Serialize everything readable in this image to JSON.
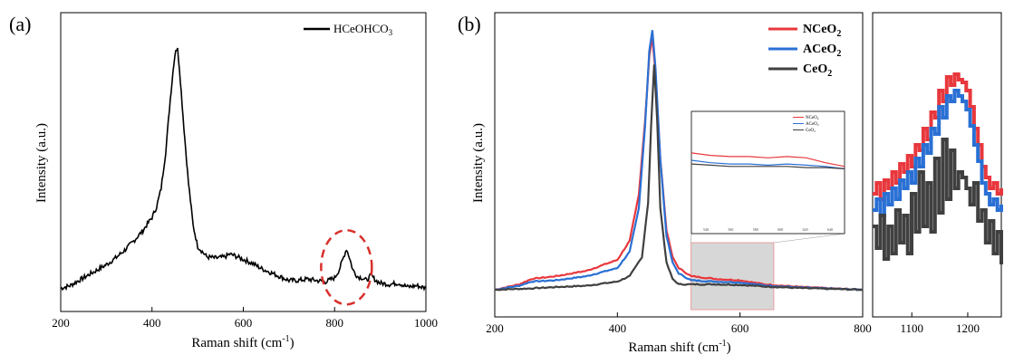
{
  "panel_labels": {
    "a": "(a)",
    "b": "(b)"
  },
  "colors": {
    "ncEO2": "#e8383d",
    "aceo2": "#2a70d4",
    "ceo2": "#404040",
    "hce": "#000000",
    "circle": "#d9302c",
    "shade": "#d7d7d7"
  },
  "chart_data": [
    {
      "id": "a",
      "type": "line",
      "xlabel": "Raman shift (cm",
      "xlabel_sup": "-1",
      "xlabel_end": ")",
      "ylabel": "Intensity (a.u.)",
      "xlim": [
        200,
        1000
      ],
      "ylim": [
        0,
        1
      ],
      "xticks": [
        "200",
        "400",
        "600",
        "800",
        "1000"
      ],
      "legend": {
        "placement": "top-right",
        "label": "HCeOHCO",
        "sub": "3"
      },
      "series": [
        {
          "name": "HCeOHCO3",
          "color_key": "hce",
          "points": [
            [
              200,
              0.04
            ],
            [
              220,
              0.05
            ],
            [
              240,
              0.07
            ],
            [
              260,
              0.09
            ],
            [
              280,
              0.11
            ],
            [
              300,
              0.13
            ],
            [
              320,
              0.155
            ],
            [
              340,
              0.185
            ],
            [
              360,
              0.22
            ],
            [
              380,
              0.26
            ],
            [
              400,
              0.31
            ],
            [
              410,
              0.35
            ],
            [
              420,
              0.42
            ],
            [
              430,
              0.56
            ],
            [
              440,
              0.76
            ],
            [
              448,
              0.9
            ],
            [
              452,
              0.95
            ],
            [
              456,
              0.95
            ],
            [
              460,
              0.88
            ],
            [
              470,
              0.65
            ],
            [
              480,
              0.44
            ],
            [
              490,
              0.28
            ],
            [
              500,
              0.2
            ],
            [
              520,
              0.16
            ],
            [
              540,
              0.155
            ],
            [
              560,
              0.16
            ],
            [
              570,
              0.17
            ],
            [
              580,
              0.165
            ],
            [
              600,
              0.15
            ],
            [
              620,
              0.135
            ],
            [
              640,
              0.115
            ],
            [
              660,
              0.1
            ],
            [
              680,
              0.085
            ],
            [
              700,
              0.07
            ],
            [
              720,
              0.07
            ],
            [
              740,
              0.075
            ],
            [
              760,
              0.07
            ],
            [
              780,
              0.065
            ],
            [
              800,
              0.08
            ],
            [
              810,
              0.11
            ],
            [
              820,
              0.16
            ],
            [
              826,
              0.19
            ],
            [
              832,
              0.16
            ],
            [
              840,
              0.11
            ],
            [
              850,
              0.085
            ],
            [
              860,
              0.08
            ],
            [
              870,
              0.07
            ],
            [
              880,
              0.09
            ],
            [
              890,
              0.07
            ],
            [
              900,
              0.06
            ],
            [
              920,
              0.055
            ],
            [
              940,
              0.06
            ],
            [
              960,
              0.045
            ],
            [
              980,
              0.05
            ],
            [
              1000,
              0.04
            ]
          ]
        }
      ],
      "annotation": {
        "type": "dashed-ellipse",
        "x": 826,
        "y": 0.12
      }
    },
    {
      "id": "b",
      "type": "line",
      "xlabel": "Raman shift (cm",
      "xlabel_sup": "-1",
      "xlabel_end": ")",
      "ylabel": "Intensity (a.u.)",
      "xlim": [
        200,
        800
      ],
      "ylim": [
        0,
        1
      ],
      "xticks": [
        "200",
        "400",
        "600",
        "800"
      ],
      "legend": {
        "placement": "top-right",
        "entries": [
          {
            "label": "NCeO",
            "sub": "2",
            "color_key": "ncEO2"
          },
          {
            "label": "ACeO",
            "sub": "2",
            "color_key": "aceo2"
          },
          {
            "label": "CeO",
            "sub": "2",
            "color_key": "ceo2"
          }
        ]
      },
      "highlight_region": [
        520,
        655
      ],
      "series": [
        {
          "name": "NCeO2",
          "color_key": "ncEO2",
          "points": [
            [
              200,
              0.0
            ],
            [
              240,
              0.02
            ],
            [
              260,
              0.04
            ],
            [
              300,
              0.05
            ],
            [
              350,
              0.07
            ],
            [
              400,
              0.11
            ],
            [
              420,
              0.18
            ],
            [
              435,
              0.35
            ],
            [
              445,
              0.62
            ],
            [
              452,
              0.86
            ],
            [
              457,
              0.93
            ],
            [
              462,
              0.8
            ],
            [
              470,
              0.48
            ],
            [
              480,
              0.22
            ],
            [
              490,
              0.12
            ],
            [
              500,
              0.08
            ],
            [
              520,
              0.05
            ],
            [
              560,
              0.04
            ],
            [
              600,
              0.035
            ],
            [
              640,
              0.02
            ],
            [
              700,
              0.01
            ],
            [
              800,
              0.0
            ]
          ]
        },
        {
          "name": "ACeO2",
          "color_key": "aceo2",
          "points": [
            [
              200,
              0.0
            ],
            [
              240,
              0.015
            ],
            [
              260,
              0.03
            ],
            [
              300,
              0.035
            ],
            [
              350,
              0.05
            ],
            [
              400,
              0.08
            ],
            [
              420,
              0.14
            ],
            [
              435,
              0.3
            ],
            [
              445,
              0.6
            ],
            [
              452,
              0.88
            ],
            [
              457,
              0.955
            ],
            [
              462,
              0.82
            ],
            [
              470,
              0.48
            ],
            [
              480,
              0.2
            ],
            [
              490,
              0.1
            ],
            [
              500,
              0.06
            ],
            [
              520,
              0.035
            ],
            [
              560,
              0.03
            ],
            [
              600,
              0.027
            ],
            [
              640,
              0.016
            ],
            [
              700,
              0.008
            ],
            [
              800,
              0.0
            ]
          ]
        },
        {
          "name": "CeO2",
          "color_key": "ceo2",
          "points": [
            [
              200,
              0.0
            ],
            [
              260,
              0.005
            ],
            [
              300,
              0.01
            ],
            [
              350,
              0.015
            ],
            [
              400,
              0.03
            ],
            [
              420,
              0.05
            ],
            [
              440,
              0.12
            ],
            [
              450,
              0.32
            ],
            [
              455,
              0.6
            ],
            [
              460,
              0.83
            ],
            [
              465,
              0.62
            ],
            [
              470,
              0.3
            ],
            [
              480,
              0.1
            ],
            [
              490,
              0.04
            ],
            [
              500,
              0.02
            ],
            [
              560,
              0.02
            ],
            [
              600,
              0.018
            ],
            [
              640,
              0.012
            ],
            [
              700,
              0.006
            ],
            [
              800,
              0.0
            ]
          ]
        }
      ],
      "inset": {
        "legend": [
          {
            "label": "NCeO",
            "sub": "2",
            "color_key": "ncEO2"
          },
          {
            "label": "ACeO",
            "sub": "2",
            "color_key": "aceo2"
          },
          {
            "label": "CeO",
            "sub": "2",
            "color_key": "ceo2"
          }
        ],
        "xticks": [
          "540",
          "560",
          "580",
          "600",
          "620",
          "640"
        ],
        "series": [
          {
            "color_key": "ncEO2",
            "y": [
              0.66,
              0.64,
              0.63,
              0.63,
              0.62,
              0.63,
              0.62,
              0.58,
              0.55
            ]
          },
          {
            "color_key": "aceo2",
            "y": [
              0.6,
              0.58,
              0.57,
              0.57,
              0.56,
              0.57,
              0.56,
              0.55,
              0.53
            ]
          },
          {
            "color_key": "ceo2",
            "y": [
              0.57,
              0.56,
              0.55,
              0.55,
              0.55,
              0.55,
              0.54,
              0.54,
              0.53
            ]
          }
        ]
      }
    },
    {
      "id": "c",
      "type": "line",
      "xlim": [
        1030,
        1260
      ],
      "ylim": [
        0,
        1
      ],
      "xticks": [
        "1100",
        "1200"
      ],
      "series": [
        {
          "color_key": "ncEO2",
          "y": [
            0.42,
            0.46,
            0.4,
            0.47,
            0.44,
            0.5,
            0.46,
            0.53,
            0.5,
            0.56,
            0.52,
            0.6,
            0.58,
            0.66,
            0.62,
            0.72,
            0.7,
            0.8,
            0.76,
            0.85,
            0.82,
            0.86,
            0.84,
            0.83,
            0.8,
            0.74,
            0.66,
            0.6,
            0.52,
            0.48,
            0.44,
            0.46,
            0.42,
            0.44
          ]
        },
        {
          "color_key": "aceo2",
          "y": [
            0.36,
            0.4,
            0.34,
            0.42,
            0.38,
            0.44,
            0.4,
            0.47,
            0.44,
            0.5,
            0.46,
            0.55,
            0.52,
            0.6,
            0.57,
            0.66,
            0.64,
            0.74,
            0.7,
            0.78,
            0.76,
            0.8,
            0.78,
            0.76,
            0.73,
            0.67,
            0.6,
            0.54,
            0.46,
            0.42,
            0.38,
            0.4,
            0.36,
            0.38
          ]
        },
        {
          "color_key": "ceo2",
          "y": [
            0.3,
            0.22,
            0.34,
            0.18,
            0.3,
            0.2,
            0.36,
            0.24,
            0.34,
            0.2,
            0.42,
            0.28,
            0.5,
            0.3,
            0.46,
            0.28,
            0.55,
            0.35,
            0.62,
            0.4,
            0.58,
            0.44,
            0.5,
            0.48,
            0.44,
            0.38,
            0.46,
            0.32,
            0.36,
            0.24,
            0.32,
            0.2,
            0.28,
            0.16
          ]
        }
      ]
    }
  ]
}
